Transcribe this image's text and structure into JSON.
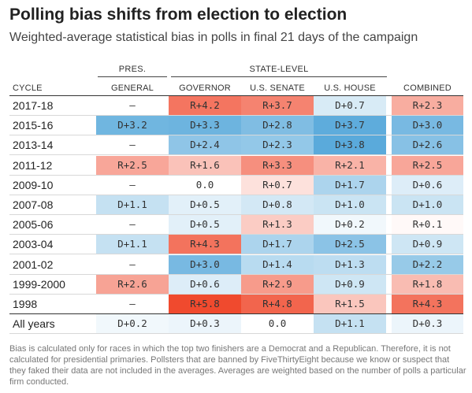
{
  "header": {
    "title": "Polling bias shifts from election to election",
    "subtitle": "Weighted-average statistical bias in polls in final 21 days of the campaign"
  },
  "chart_data": {
    "type": "table",
    "column_groups": [
      {
        "label": "PRES.",
        "columns": [
          "GENERAL"
        ]
      },
      {
        "label": "STATE-LEVEL",
        "columns": [
          "GOVERNOR",
          "U.S. SENATE",
          "U.S. HOUSE"
        ]
      }
    ],
    "row_header": "CYCLE",
    "columns": [
      "GENERAL",
      "GOVERNOR",
      "U.S. SENATE",
      "U.S. HOUSE",
      "COMBINED"
    ],
    "rows": [
      {
        "cycle": "2017-18",
        "cells": [
          "—",
          "R+4.2",
          "R+3.7",
          "D+0.7",
          "R+2.3"
        ]
      },
      {
        "cycle": "2015-16",
        "cells": [
          "D+3.2",
          "D+3.3",
          "D+2.8",
          "D+3.7",
          "D+3.0"
        ]
      },
      {
        "cycle": "2013-14",
        "cells": [
          "—",
          "D+2.4",
          "D+2.3",
          "D+3.8",
          "D+2.6"
        ]
      },
      {
        "cycle": "2011-12",
        "cells": [
          "R+2.5",
          "R+1.6",
          "R+3.3",
          "R+2.1",
          "R+2.5"
        ]
      },
      {
        "cycle": "2009-10",
        "cells": [
          "—",
          "0.0",
          "R+0.7",
          "D+1.7",
          "D+0.6"
        ]
      },
      {
        "cycle": "2007-08",
        "cells": [
          "D+1.1",
          "D+0.5",
          "D+0.8",
          "D+1.0",
          "D+1.0"
        ]
      },
      {
        "cycle": "2005-06",
        "cells": [
          "—",
          "D+0.5",
          "R+1.3",
          "D+0.2",
          "R+0.1"
        ]
      },
      {
        "cycle": "2003-04",
        "cells": [
          "D+1.1",
          "R+4.3",
          "D+1.7",
          "D+2.5",
          "D+0.9"
        ]
      },
      {
        "cycle": "2001-02",
        "cells": [
          "—",
          "D+3.0",
          "D+1.4",
          "D+1.3",
          "D+2.2"
        ]
      },
      {
        "cycle": "1999-2000",
        "cells": [
          "R+2.6",
          "D+0.6",
          "R+2.9",
          "D+0.9",
          "R+1.8"
        ]
      },
      {
        "cycle": "1998",
        "cells": [
          "—",
          "R+5.8",
          "R+4.8",
          "R+1.5",
          "R+4.3"
        ]
      },
      {
        "cycle": "All years",
        "cells": [
          "D+0.2",
          "D+0.3",
          "0.0",
          "D+1.1",
          "D+0.3"
        ]
      }
    ],
    "colors": {
      "democrat": "#5aaadb",
      "republican": "#f04a2e",
      "neutral": "#ffffff"
    }
  },
  "footnote": "Bias is calculated only for races in which the top two finishers are a Democrat and a Republican. Therefore, it is not calculated for presidential primaries. Pollsters that are banned by FiveThirtyEight because we know or suspect that they faked their data are not included in the averages. Averages are weighted based on the number of polls a particular firm conducted."
}
